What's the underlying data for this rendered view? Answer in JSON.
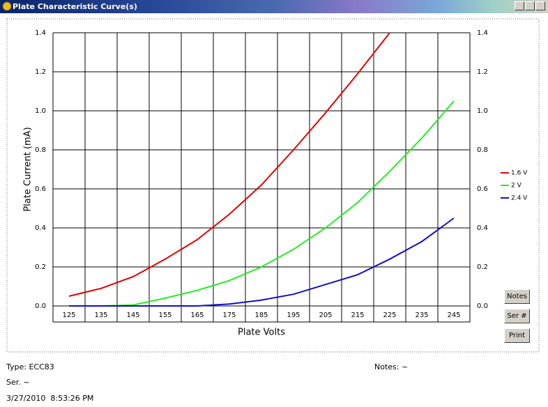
{
  "window": {
    "title": "Plate Characteristic Curve(s)"
  },
  "chart_data": {
    "type": "line",
    "x_label": "Plate Volts",
    "y_label": "Plate Current (mA)",
    "categories": [
      "125",
      "135",
      "145",
      "155",
      "165",
      "175",
      "185",
      "195",
      "205",
      "215",
      "225",
      "235",
      "245"
    ],
    "series": [
      {
        "name": "1.6 V",
        "color": "#e00000",
        "values": [
          0.05,
          0.09,
          0.15,
          0.24,
          0.34,
          0.47,
          0.62,
          0.8,
          0.99,
          1.19,
          1.4,
          null,
          null
        ]
      },
      {
        "name": "2 V",
        "color": "#22ee22",
        "values": [
          0,
          0,
          0.005,
          0.04,
          0.08,
          0.13,
          0.2,
          0.29,
          0.4,
          0.53,
          0.69,
          0.86,
          1.05
        ]
      },
      {
        "name": "2.4 V",
        "color": "#1010c0",
        "values": [
          0,
          0,
          0,
          0,
          0,
          0.01,
          0.03,
          0.06,
          0.11,
          0.16,
          0.24,
          0.33,
          0.45
        ]
      }
    ],
    "ylim": [
      0,
      1.4
    ],
    "yticks": [
      {
        "value": 0,
        "label": "0.0"
      },
      0.2,
      0.4,
      0.6,
      0.8,
      {
        "value": 1,
        "label": "1.0"
      },
      1.2,
      1.4
    ],
    "grid": true,
    "legend": "right"
  },
  "buttons": [
    "Notes",
    "Ser #",
    "Print"
  ],
  "footer": {
    "type": "Type: ECC83",
    "serial": "Ser. ~",
    "timestamp": "3/27/2010  8:53:26 PM",
    "notes": "Notes: ~"
  }
}
